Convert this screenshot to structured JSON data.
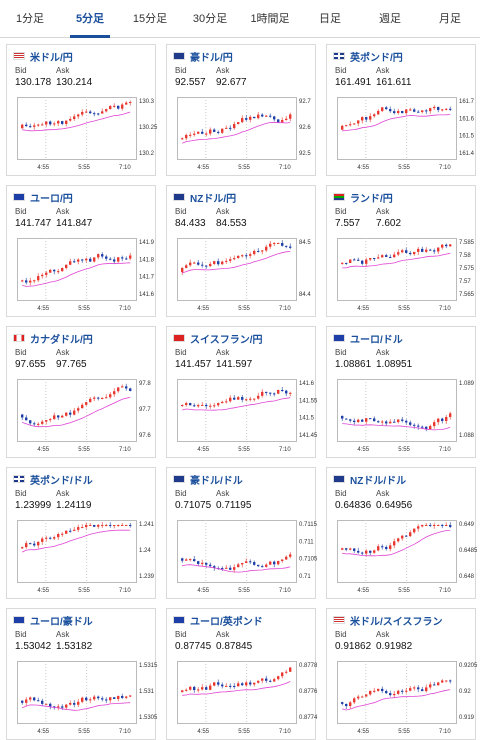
{
  "tabs": [
    {
      "label": "1分足",
      "active": false
    },
    {
      "label": "5分足",
      "active": true
    },
    {
      "label": "15分足",
      "active": false
    },
    {
      "label": "30分足",
      "active": false
    },
    {
      "label": "1時間足",
      "active": false
    },
    {
      "label": "日足",
      "active": false
    },
    {
      "label": "週足",
      "active": false
    },
    {
      "label": "月足",
      "active": false
    }
  ],
  "colors": {
    "up": "#e8382f",
    "down": "#1f3fa8",
    "ma": "#e044d4",
    "accent": "#1a4f9c"
  },
  "labels": {
    "bid": "Bid",
    "ask": "Ask"
  },
  "cards": [
    {
      "pair": "米ドル/円",
      "flag": "us-flag-icon",
      "bid": "130.178",
      "ask": "130.214",
      "y_ticks": [
        "130.3",
        "130.25",
        "130.2"
      ],
      "x_ticks": [
        "4:55",
        "5:55",
        "7:10"
      ]
    },
    {
      "pair": "豪ドル/円",
      "flag": "au-flag-icon",
      "bid": "92.557",
      "ask": "92.677",
      "y_ticks": [
        "92.7",
        "92.6",
        "92.5"
      ],
      "x_ticks": [
        "4:55",
        "5:55",
        "7:10"
      ]
    },
    {
      "pair": "英ポンド/円",
      "flag": "gb-flag-icon",
      "bid": "161.491",
      "ask": "161.611",
      "y_ticks": [
        "161.7",
        "161.6",
        "161.5",
        "161.4"
      ],
      "x_ticks": [
        "4:55",
        "5:55",
        "7:10"
      ]
    },
    {
      "pair": "ユーロ/円",
      "flag": "eu-flag-icon",
      "bid": "141.747",
      "ask": "141.847",
      "y_ticks": [
        "141.9",
        "141.8",
        "141.7",
        "141.6"
      ],
      "x_ticks": [
        "4:55",
        "5:55",
        "7:10"
      ]
    },
    {
      "pair": "NZドル/円",
      "flag": "nz-flag-icon",
      "bid": "84.433",
      "ask": "84.553",
      "y_ticks": [
        "84.5",
        "84.4"
      ],
      "x_ticks": [
        "4:55",
        "5:55",
        "7:10"
      ]
    },
    {
      "pair": "ランド/円",
      "flag": "za-flag-icon",
      "bid": "7.557",
      "ask": "7.602",
      "y_ticks": [
        "7.585",
        "7.58",
        "7.575",
        "7.57",
        "7.565"
      ],
      "x_ticks": [
        "4:55",
        "5:55",
        "7:10"
      ]
    },
    {
      "pair": "カナダドル/円",
      "flag": "ca-flag-icon",
      "bid": "97.655",
      "ask": "97.765",
      "y_ticks": [
        "97.8",
        "97.7",
        "97.6"
      ],
      "x_ticks": [
        "4:55",
        "5:55",
        "7:10"
      ]
    },
    {
      "pair": "スイスフラン/円",
      "flag": "ch-flag-icon",
      "bid": "141.457",
      "ask": "141.597",
      "y_ticks": [
        "141.6",
        "141.55",
        "141.5",
        "141.45"
      ],
      "x_ticks": [
        "4:55",
        "5:55",
        "7:10"
      ]
    },
    {
      "pair": "ユーロ/ドル",
      "flag": "eu-flag-icon",
      "bid": "1.08861",
      "ask": "1.08951",
      "y_ticks": [
        "1.089",
        "1.088"
      ],
      "x_ticks": [
        "4:55",
        "5:55",
        "7:10"
      ]
    },
    {
      "pair": "英ポンド/ドル",
      "flag": "gb-flag-icon",
      "bid": "1.23999",
      "ask": "1.24119",
      "y_ticks": [
        "1.241",
        "1.24",
        "1.239"
      ],
      "x_ticks": [
        "4:55",
        "5:55",
        "7:10"
      ]
    },
    {
      "pair": "豪ドル/ドル",
      "flag": "au-flag-icon",
      "bid": "0.71075",
      "ask": "0.71195",
      "y_ticks": [
        "0.7115",
        "0.711",
        "0.7105",
        "0.71"
      ],
      "x_ticks": [
        "4:55",
        "5:55",
        "7:10"
      ]
    },
    {
      "pair": "NZドル/ドル",
      "flag": "nz-flag-icon",
      "bid": "0.64836",
      "ask": "0.64956",
      "y_ticks": [
        "0.649",
        "0.6485",
        "0.648"
      ],
      "x_ticks": [
        "4:55",
        "5:55",
        "7:10"
      ]
    },
    {
      "pair": "ユーロ/豪ドル",
      "flag": "eu-flag-icon",
      "bid": "1.53042",
      "ask": "1.53182",
      "y_ticks": [
        "1.5315",
        "1.531",
        "1.5305"
      ],
      "x_ticks": [
        "4:55",
        "5:55",
        "7:10"
      ]
    },
    {
      "pair": "ユーロ/英ポンド",
      "flag": "eu-flag-icon",
      "bid": "0.87745",
      "ask": "0.87845",
      "y_ticks": [
        "0.8778",
        "0.8776",
        "0.8774"
      ],
      "x_ticks": [
        "4:55",
        "5:55",
        "7:10"
      ]
    },
    {
      "pair": "米ドル/スイスフラン",
      "flag": "us-flag-icon",
      "bid": "0.91862",
      "ask": "0.91982",
      "y_ticks": [
        "0.9205",
        "0.92",
        "0.919"
      ],
      "x_ticks": [
        "4:55",
        "5:55",
        "7:10"
      ]
    }
  ]
}
